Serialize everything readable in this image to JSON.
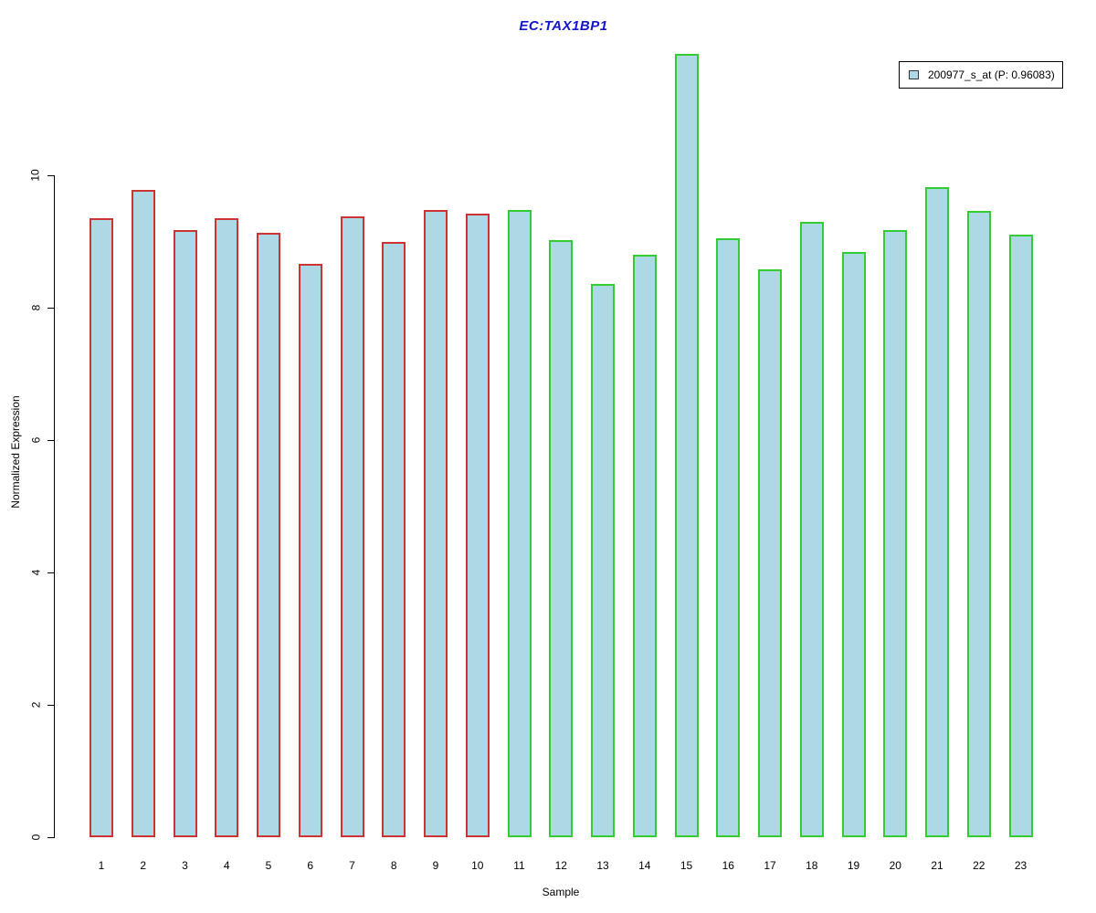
{
  "chart_data": {
    "type": "bar",
    "title": "EC:TAX1BP1",
    "xlabel": "Sample",
    "ylabel": "Normalized Expression",
    "categories": [
      "1",
      "2",
      "3",
      "4",
      "5",
      "6",
      "7",
      "8",
      "9",
      "10",
      "11",
      "12",
      "13",
      "14",
      "15",
      "16",
      "17",
      "18",
      "19",
      "20",
      "21",
      "22",
      "23"
    ],
    "values": [
      9.35,
      9.78,
      9.17,
      9.35,
      9.13,
      8.66,
      9.38,
      9.0,
      9.47,
      9.42,
      9.48,
      9.02,
      8.36,
      8.8,
      11.83,
      9.05,
      8.58,
      9.3,
      8.84,
      9.17,
      9.82,
      9.46,
      9.1
    ],
    "bar_border_groups": [
      "red",
      "red",
      "red",
      "red",
      "red",
      "red",
      "red",
      "red",
      "red",
      "red",
      "green",
      "green",
      "green",
      "green",
      "green",
      "green",
      "green",
      "green",
      "green",
      "green",
      "green",
      "green",
      "green"
    ],
    "yticks": [
      0,
      2,
      4,
      6,
      8,
      10
    ],
    "ylim": [
      0,
      12
    ],
    "grid": false,
    "legend": {
      "position": "top-right",
      "entries": [
        {
          "label": "200977_s_at (P: 0.96083)",
          "swatch_fill": "#ADD8E6"
        }
      ]
    },
    "colors": {
      "title": "#1414CC",
      "bar_fill": "#ADD8E6",
      "red_border": "#CC3333",
      "green_border": "#33CC33",
      "axis": "#000000"
    }
  }
}
